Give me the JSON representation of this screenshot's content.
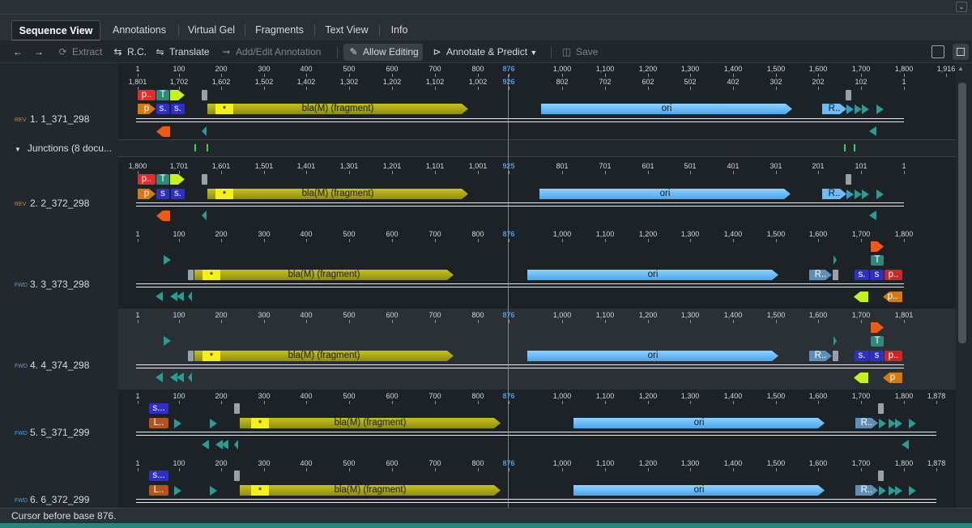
{
  "tabs": [
    "Sequence View",
    "Annotations",
    "Virtual Gel",
    "Fragments",
    "Text View",
    "Info"
  ],
  "toolbar": {
    "extract": "Extract",
    "rc": "R.C.",
    "translate": "Translate",
    "add_edit": "Add/Edit Annotation",
    "allow_editing": "Allow Editing",
    "annotate": "Annotate & Predict",
    "save": "Save"
  },
  "icons": [
    "back-arrow-icon",
    "forward-arrow-icon",
    "extract-icon",
    "rc-icon",
    "translate-icon",
    "add-annotation-icon",
    "pencil-icon",
    "tag-icon",
    "chevron-down-icon",
    "save-icon",
    "layout-icon",
    "panel-icon",
    "scroll-up-icon"
  ],
  "rows": [
    {
      "tag": "REV",
      "label": "1. 1_371_298"
    },
    {
      "label": "Junctions (8 docu..."
    },
    {
      "tag": "REV",
      "label": "2. 2_372_298"
    },
    {
      "tag": "FWD",
      "label": "3. 3_373_298"
    },
    {
      "tag": "FWD",
      "label": "4. 4_374_298"
    },
    {
      "tag": "FWD",
      "label": "5. 5_371_299"
    },
    {
      "tag": "FWD",
      "label": "6. 6_372_299"
    }
  ],
  "top_ruler": [
    "1",
    "100",
    "200",
    "300",
    "400",
    "500",
    "600",
    "700",
    "800",
    "876",
    "1,000",
    "1,100",
    "1,200",
    "1,300",
    "1,400",
    "1,500",
    "1,600",
    "1,700",
    "1,800",
    "1,916"
  ],
  "ruler1": [
    "1,801",
    "1,702",
    "1,602",
    "1,502",
    "1,402",
    "1,302",
    "1,202",
    "1,102",
    "1,002",
    "926",
    "802",
    "702",
    "602",
    "502",
    "402",
    "302",
    "202",
    "102",
    "1"
  ],
  "ruler2": [
    "1,800",
    "1,701",
    "1,601",
    "1,501",
    "1,401",
    "1,301",
    "1,201",
    "1,101",
    "1,001",
    "925",
    "801",
    "701",
    "601",
    "501",
    "401",
    "301",
    "201",
    "101",
    "1"
  ],
  "ruler3": [
    "1",
    "100",
    "200",
    "300",
    "400",
    "500",
    "600",
    "700",
    "800",
    "876",
    "1,000",
    "1,100",
    "1,200",
    "1,300",
    "1,400",
    "1,500",
    "1,600",
    "1,700",
    "1,800"
  ],
  "ruler4": [
    "1",
    "100",
    "200",
    "300",
    "400",
    "500",
    "600",
    "700",
    "800",
    "876",
    "1,000",
    "1,100",
    "1,200",
    "1,300",
    "1,400",
    "1,500",
    "1,600",
    "1,700",
    "1,801"
  ],
  "ruler5": [
    "1",
    "100",
    "200",
    "300",
    "400",
    "500",
    "600",
    "700",
    "800",
    "876",
    "1,000",
    "1,100",
    "1,200",
    "1,300",
    "1,400",
    "1,500",
    "1,600",
    "1,700",
    "1,800",
    "1,878"
  ],
  "features": {
    "bla": "bla(M) (fragment)",
    "ori": "ori",
    "star": "*",
    "p_dot": "p..",
    "t": "T",
    "p": "p",
    "s": "s",
    "s_dot": "s.",
    "r_dot": "R..",
    "l_dot": "L..",
    "s_dots": "s..."
  },
  "status": "Cursor before base 876.",
  "colors": {
    "accent": "#3b82d6",
    "olive": "#b3b114",
    "ori": "#6cbcf7",
    "teal": "#2a9c93",
    "cursor_blue": "#4a9be8"
  }
}
